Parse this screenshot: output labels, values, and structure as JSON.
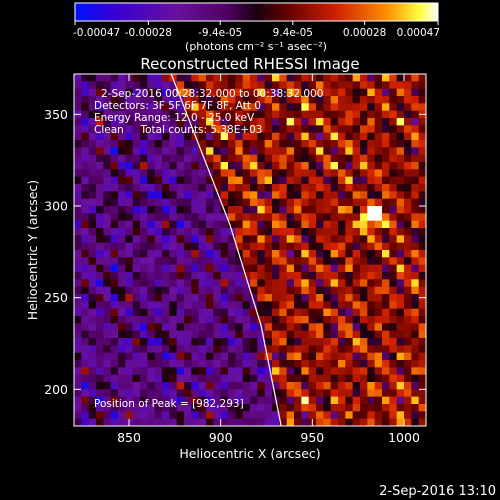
{
  "chart_data": {
    "type": "heatmap",
    "title": "Reconstructed RHESSI Image",
    "xlabel": "Heliocentric X (arcsec)",
    "ylabel": "Heliocentric Y (arcsec)",
    "xlim": [
      820,
      1012
    ],
    "ylim": [
      180,
      372
    ],
    "x_ticks": [
      850,
      900,
      950,
      1000
    ],
    "y_ticks": [
      200,
      250,
      300,
      350
    ],
    "annotations": {
      "time_range": "2-Sep-2016 00:28:32.000 to 00:38:32.000",
      "detectors": "Detectors: 3F 5F 6F 7F 8F, Att 0",
      "energy": "Energy Range: 12.0 - 25.0 keV",
      "clean": "Clean     Total counts: 5.38E+03",
      "peak": "Position of Peak = [982,293]"
    },
    "colorbar": {
      "min": -0.00047,
      "max": 0.00047,
      "tick_values": [
        -0.00047,
        -0.00028,
        -9.4e-05,
        9.4e-05,
        0.00028,
        0.00047
      ],
      "tick_labels": [
        "-0.00047",
        "-0.00028",
        "-9.4e-05",
        "9.4e-05",
        "0.00028",
        "0.00047"
      ],
      "unit_label": "(photons cm⁻² s⁻¹ asec⁻²)"
    },
    "peak": {
      "x": 982,
      "y": 293
    },
    "limb_curve": [
      [
        873,
        372
      ],
      [
        905,
        290
      ],
      [
        922,
        235
      ],
      [
        933,
        180
      ]
    ]
  },
  "footer": {
    "timestamp": "2-Sep-2016 13:10"
  },
  "colors": {
    "background": "#000000",
    "colormap": [
      "#0000ff",
      "#4b0082",
      "#800080",
      "#000000",
      "#8b0000",
      "#ff4500",
      "#ffd700",
      "#ffffff"
    ]
  }
}
